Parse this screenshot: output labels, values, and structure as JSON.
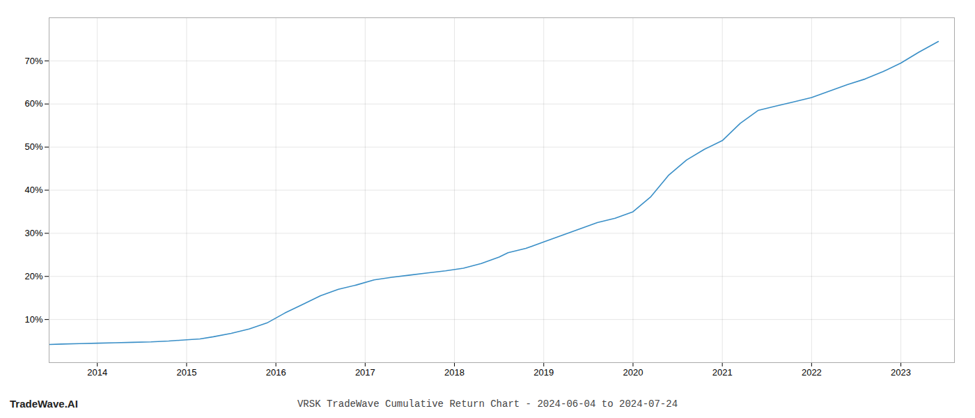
{
  "chart_data": {
    "type": "line",
    "title": "VRSK TradeWave Cumulative Return Chart - 2024-06-04 to 2024-07-24",
    "annotations": [
      "TradeWave.AI"
    ],
    "color": "#3a8fc7",
    "x": [
      2013.46,
      2013.6,
      2013.8,
      2014.0,
      2014.2,
      2014.4,
      2014.6,
      2014.8,
      2015.0,
      2015.15,
      2015.3,
      2015.5,
      2015.7,
      2015.9,
      2016.1,
      2016.3,
      2016.5,
      2016.7,
      2016.9,
      2017.1,
      2017.3,
      2017.5,
      2017.7,
      2017.9,
      2018.1,
      2018.3,
      2018.5,
      2018.6,
      2018.8,
      2019.0,
      2019.2,
      2019.4,
      2019.6,
      2019.8,
      2020.0,
      2020.2,
      2020.4,
      2020.6,
      2020.8,
      2021.0,
      2021.2,
      2021.4,
      2021.6,
      2021.8,
      2022.0,
      2022.2,
      2022.4,
      2022.6,
      2022.8,
      2023.0,
      2023.2,
      2023.42
    ],
    "values": [
      4.2,
      4.3,
      4.4,
      4.5,
      4.6,
      4.7,
      4.8,
      5.0,
      5.3,
      5.5,
      6.0,
      6.8,
      7.8,
      9.2,
      11.5,
      13.5,
      15.5,
      17.0,
      18.0,
      19.2,
      19.8,
      20.3,
      20.8,
      21.3,
      21.9,
      23.0,
      24.5,
      25.5,
      26.5,
      28.0,
      29.5,
      31.0,
      32.5,
      33.5,
      35.0,
      38.5,
      43.5,
      47.0,
      49.5,
      51.5,
      55.5,
      58.5,
      59.5,
      60.5,
      61.5,
      63.0,
      64.5,
      65.8,
      67.5,
      69.5,
      72.0,
      74.5
    ],
    "xlim": [
      2013.46,
      2023.6
    ],
    "xticks": [
      2014,
      2015,
      2016,
      2017,
      2018,
      2019,
      2020,
      2021,
      2022,
      2023
    ],
    "ylim": [
      0,
      80
    ],
    "yticks": [
      {
        "value": 10,
        "label": "10%"
      },
      {
        "value": 20,
        "label": "20%"
      },
      {
        "value": 30,
        "label": "30%"
      },
      {
        "value": 40,
        "label": "40%"
      },
      {
        "value": 50,
        "label": "50%"
      },
      {
        "value": 60,
        "label": "60%"
      },
      {
        "value": 70,
        "label": "70%"
      }
    ],
    "grid": true
  }
}
